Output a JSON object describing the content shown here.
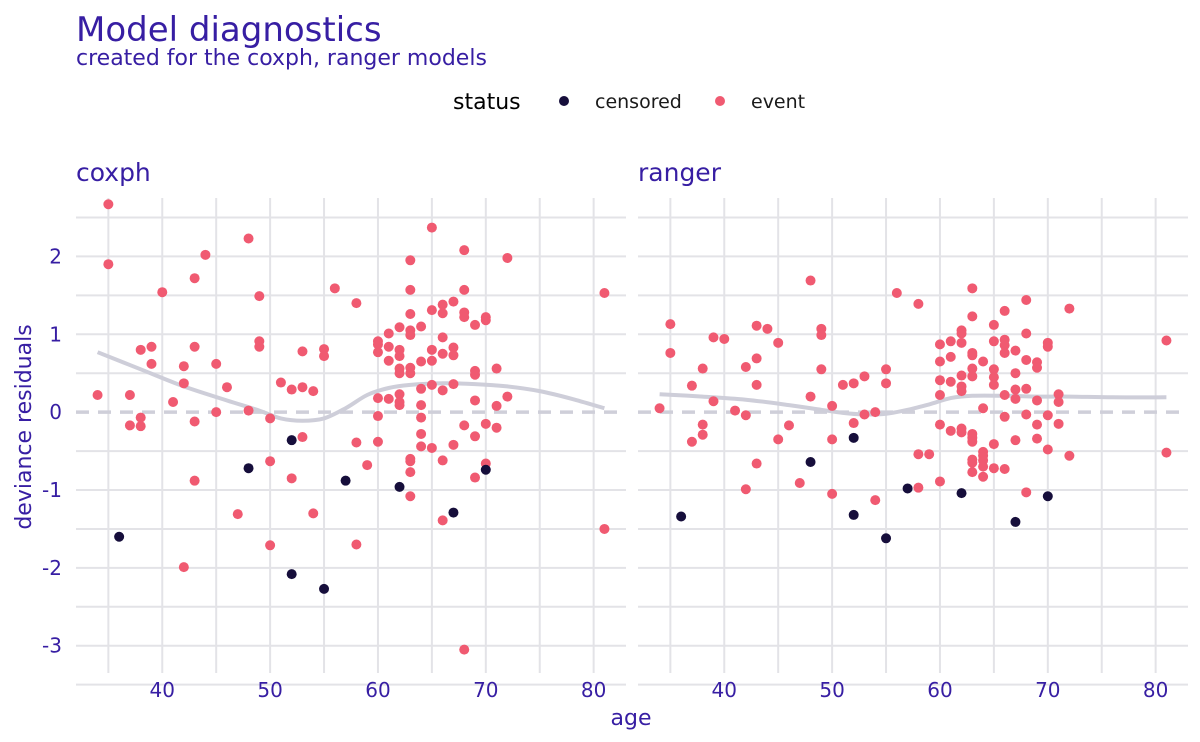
{
  "title": "Model diagnostics",
  "subtitle": "created for the coxph, ranger models",
  "legend": {
    "title": "status",
    "entries": [
      {
        "label": "censored",
        "color": "#160e3b"
      },
      {
        "label": "event",
        "color": "#f05a71"
      }
    ]
  },
  "xlabel": "age",
  "ylabel": "deviance residuals",
  "chart_data": {
    "type": "scatter",
    "xlim": [
      32,
      83
    ],
    "ylim": [
      -3.35,
      2.75
    ],
    "x_ticks": [
      40,
      50,
      60,
      70,
      80
    ],
    "y_ticks": [
      2,
      1,
      0,
      -1,
      -2,
      -3
    ],
    "y_tick_labels": [
      "2",
      "1",
      "0",
      "-1",
      "-2",
      "-3"
    ],
    "grid": true,
    "reference_line": 0,
    "smooth_color": "#ceced9",
    "panels": [
      {
        "name": "coxph",
        "censored": [
          [
            36,
            -1.6
          ],
          [
            48,
            -0.72
          ],
          [
            52,
            -0.36
          ],
          [
            52,
            -2.08
          ],
          [
            55,
            -2.27
          ],
          [
            57,
            -0.88
          ],
          [
            62,
            -0.96
          ],
          [
            67,
            -1.29
          ],
          [
            70,
            -0.74
          ]
        ],
        "event": [
          [
            34,
            0.22
          ],
          [
            35,
            2.67
          ],
          [
            35,
            1.9
          ],
          [
            37,
            0.22
          ],
          [
            37,
            -0.17
          ],
          [
            38,
            0.8
          ],
          [
            38,
            -0.07
          ],
          [
            38,
            -0.18
          ],
          [
            39,
            0.84
          ],
          [
            39,
            0.62
          ],
          [
            40,
            1.54
          ],
          [
            41,
            0.13
          ],
          [
            42,
            0.59
          ],
          [
            42,
            0.37
          ],
          [
            42,
            -1.99
          ],
          [
            43,
            1.72
          ],
          [
            43,
            0.84
          ],
          [
            43,
            -0.12
          ],
          [
            43,
            -0.88
          ],
          [
            44,
            2.02
          ],
          [
            45,
            0.62
          ],
          [
            45,
            0.0
          ],
          [
            46,
            0.32
          ],
          [
            47,
            -1.31
          ],
          [
            48,
            2.23
          ],
          [
            48,
            0.02
          ],
          [
            49,
            1.49
          ],
          [
            49,
            0.91
          ],
          [
            49,
            0.84
          ],
          [
            50,
            -0.08
          ],
          [
            50,
            -0.63
          ],
          [
            50,
            -1.71
          ],
          [
            51,
            0.38
          ],
          [
            52,
            0.29
          ],
          [
            52,
            -0.85
          ],
          [
            53,
            0.78
          ],
          [
            53,
            0.32
          ],
          [
            53,
            -0.32
          ],
          [
            54,
            0.27
          ],
          [
            54,
            -1.3
          ],
          [
            55,
            0.81
          ],
          [
            55,
            0.72
          ],
          [
            56,
            1.59
          ],
          [
            58,
            1.4
          ],
          [
            58,
            -0.39
          ],
          [
            58,
            -1.7
          ],
          [
            59,
            -0.68
          ],
          [
            60,
            0.91
          ],
          [
            60,
            0.87
          ],
          [
            60,
            0.77
          ],
          [
            60,
            0.18
          ],
          [
            60,
            -0.05
          ],
          [
            60,
            -0.38
          ],
          [
            61,
            1.01
          ],
          [
            61,
            0.84
          ],
          [
            61,
            0.66
          ],
          [
            61,
            0.17
          ],
          [
            62,
            1.09
          ],
          [
            62,
            0.8
          ],
          [
            62,
            0.72
          ],
          [
            62,
            0.56
          ],
          [
            62,
            0.5
          ],
          [
            62,
            0.23
          ],
          [
            62,
            0.13
          ],
          [
            62,
            0.09
          ],
          [
            63,
            1.95
          ],
          [
            63,
            1.57
          ],
          [
            63,
            1.26
          ],
          [
            63,
            1.05
          ],
          [
            63,
            0.99
          ],
          [
            63,
            0.57
          ],
          [
            63,
            0.5
          ],
          [
            63,
            -0.6
          ],
          [
            63,
            -0.63
          ],
          [
            63,
            -0.77
          ],
          [
            63,
            -1.08
          ],
          [
            64,
            1.1
          ],
          [
            64,
            0.65
          ],
          [
            64,
            0.3
          ],
          [
            64,
            0.09
          ],
          [
            64,
            -0.07
          ],
          [
            64,
            -0.28
          ],
          [
            64,
            -0.44
          ],
          [
            65,
            2.37
          ],
          [
            65,
            1.31
          ],
          [
            65,
            0.8
          ],
          [
            65,
            0.66
          ],
          [
            65,
            0.35
          ],
          [
            65,
            -0.46
          ],
          [
            66,
            1.38
          ],
          [
            66,
            1.27
          ],
          [
            66,
            0.96
          ],
          [
            66,
            0.75
          ],
          [
            66,
            0.28
          ],
          [
            66,
            -0.62
          ],
          [
            66,
            -1.39
          ],
          [
            67,
            1.42
          ],
          [
            67,
            0.83
          ],
          [
            67,
            0.73
          ],
          [
            67,
            0.36
          ],
          [
            67,
            -0.42
          ],
          [
            68,
            2.08
          ],
          [
            68,
            1.57
          ],
          [
            68,
            1.28
          ],
          [
            68,
            1.22
          ],
          [
            68,
            -0.17
          ],
          [
            68,
            -3.05
          ],
          [
            69,
            1.12
          ],
          [
            69,
            0.53
          ],
          [
            69,
            0.48
          ],
          [
            69,
            0.15
          ],
          [
            69,
            -0.31
          ],
          [
            69,
            -0.84
          ],
          [
            70,
            1.22
          ],
          [
            70,
            1.18
          ],
          [
            70,
            -0.15
          ],
          [
            70,
            -0.66
          ],
          [
            71,
            0.56
          ],
          [
            71,
            0.08
          ],
          [
            71,
            -0.2
          ],
          [
            72,
            1.98
          ],
          [
            72,
            0.2
          ],
          [
            81,
            1.53
          ],
          [
            81,
            -1.5
          ]
        ],
        "smooth": [
          [
            34,
            0.77
          ],
          [
            38,
            0.55
          ],
          [
            42,
            0.33
          ],
          [
            46,
            0.15
          ],
          [
            49,
            0.02
          ],
          [
            51,
            -0.08
          ],
          [
            53,
            -0.11
          ],
          [
            55,
            -0.08
          ],
          [
            57,
            0.05
          ],
          [
            59,
            0.22
          ],
          [
            61,
            0.31
          ],
          [
            63,
            0.35
          ],
          [
            66,
            0.37
          ],
          [
            69,
            0.36
          ],
          [
            72,
            0.33
          ],
          [
            75,
            0.27
          ],
          [
            78,
            0.17
          ],
          [
            81,
            0.05
          ]
        ]
      },
      {
        "name": "ranger",
        "censored": [
          [
            36,
            -1.34
          ],
          [
            48,
            -0.64
          ],
          [
            52,
            -0.33
          ],
          [
            52,
            -1.32
          ],
          [
            55,
            -1.62
          ],
          [
            57,
            -0.98
          ],
          [
            62,
            -1.04
          ],
          [
            67,
            -1.41
          ],
          [
            70,
            -1.08
          ]
        ],
        "event": [
          [
            34,
            0.05
          ],
          [
            35,
            1.13
          ],
          [
            35,
            0.76
          ],
          [
            37,
            0.34
          ],
          [
            37,
            -0.38
          ],
          [
            38,
            0.56
          ],
          [
            38,
            -0.16
          ],
          [
            38,
            -0.29
          ],
          [
            39,
            0.96
          ],
          [
            39,
            0.14
          ],
          [
            40,
            0.94
          ],
          [
            41,
            0.02
          ],
          [
            42,
            0.58
          ],
          [
            42,
            -0.04
          ],
          [
            42,
            -0.99
          ],
          [
            43,
            1.11
          ],
          [
            43,
            0.69
          ],
          [
            43,
            0.35
          ],
          [
            43,
            -0.66
          ],
          [
            44,
            1.07
          ],
          [
            45,
            0.89
          ],
          [
            45,
            -0.35
          ],
          [
            46,
            -0.17
          ],
          [
            47,
            -0.91
          ],
          [
            48,
            1.69
          ],
          [
            48,
            0.2
          ],
          [
            49,
            1.07
          ],
          [
            49,
            0.99
          ],
          [
            49,
            0.55
          ],
          [
            50,
            0.08
          ],
          [
            50,
            -0.35
          ],
          [
            50,
            -1.05
          ],
          [
            51,
            0.35
          ],
          [
            52,
            0.37
          ],
          [
            52,
            -0.14
          ],
          [
            53,
            0.46
          ],
          [
            53,
            -0.03
          ],
          [
            54,
            0.0
          ],
          [
            54,
            -1.13
          ],
          [
            55,
            0.55
          ],
          [
            55,
            0.37
          ],
          [
            56,
            1.53
          ],
          [
            58,
            1.39
          ],
          [
            58,
            -0.54
          ],
          [
            58,
            -0.97
          ],
          [
            59,
            -0.54
          ],
          [
            60,
            0.87
          ],
          [
            60,
            0.65
          ],
          [
            60,
            0.41
          ],
          [
            60,
            0.22
          ],
          [
            60,
            -0.16
          ],
          [
            60,
            -0.89
          ],
          [
            61,
            0.91
          ],
          [
            61,
            0.71
          ],
          [
            61,
            0.39
          ],
          [
            61,
            -0.24
          ],
          [
            62,
            1.05
          ],
          [
            62,
            1.01
          ],
          [
            62,
            0.89
          ],
          [
            62,
            0.47
          ],
          [
            62,
            0.33
          ],
          [
            62,
            0.27
          ],
          [
            62,
            -0.21
          ],
          [
            62,
            -0.26
          ],
          [
            63,
            1.59
          ],
          [
            63,
            1.23
          ],
          [
            63,
            0.76
          ],
          [
            63,
            0.73
          ],
          [
            63,
            0.56
          ],
          [
            63,
            0.46
          ],
          [
            63,
            -0.28
          ],
          [
            63,
            -0.33
          ],
          [
            63,
            -0.38
          ],
          [
            63,
            -0.61
          ],
          [
            63,
            -0.65
          ],
          [
            63,
            -0.77
          ],
          [
            64,
            0.65
          ],
          [
            64,
            0.05
          ],
          [
            64,
            -0.51
          ],
          [
            64,
            -0.56
          ],
          [
            64,
            -0.62
          ],
          [
            64,
            -0.7
          ],
          [
            64,
            -0.83
          ],
          [
            65,
            1.12
          ],
          [
            65,
            0.91
          ],
          [
            65,
            0.55
          ],
          [
            65,
            0.45
          ],
          [
            65,
            0.35
          ],
          [
            65,
            -0.41
          ],
          [
            65,
            -0.72
          ],
          [
            66,
            1.3
          ],
          [
            66,
            0.93
          ],
          [
            66,
            0.86
          ],
          [
            66,
            0.76
          ],
          [
            66,
            0.22
          ],
          [
            66,
            -0.06
          ],
          [
            66,
            -0.73
          ],
          [
            67,
            0.79
          ],
          [
            67,
            0.5
          ],
          [
            67,
            0.29
          ],
          [
            67,
            0.17
          ],
          [
            67,
            -0.36
          ],
          [
            68,
            1.44
          ],
          [
            68,
            1.01
          ],
          [
            68,
            0.67
          ],
          [
            68,
            0.3
          ],
          [
            68,
            -0.03
          ],
          [
            68,
            -1.03
          ],
          [
            69,
            0.64
          ],
          [
            69,
            0.57
          ],
          [
            69,
            0.15
          ],
          [
            69,
            -0.16
          ],
          [
            69,
            -0.34
          ],
          [
            70,
            0.89
          ],
          [
            70,
            0.84
          ],
          [
            70,
            -0.04
          ],
          [
            70,
            -0.48
          ],
          [
            71,
            0.23
          ],
          [
            71,
            0.13
          ],
          [
            71,
            -0.15
          ],
          [
            72,
            1.33
          ],
          [
            72,
            -0.56
          ],
          [
            81,
            0.92
          ],
          [
            81,
            -0.52
          ]
        ],
        "smooth": [
          [
            34,
            0.23
          ],
          [
            38,
            0.2
          ],
          [
            42,
            0.16
          ],
          [
            46,
            0.09
          ],
          [
            49,
            0.03
          ],
          [
            51,
            -0.01
          ],
          [
            53,
            -0.03
          ],
          [
            55,
            -0.02
          ],
          [
            57,
            0.03
          ],
          [
            59,
            0.1
          ],
          [
            61,
            0.18
          ],
          [
            63,
            0.21
          ],
          [
            66,
            0.21
          ],
          [
            69,
            0.2
          ],
          [
            72,
            0.2
          ],
          [
            76,
            0.19
          ],
          [
            81,
            0.19
          ]
        ]
      }
    ]
  }
}
